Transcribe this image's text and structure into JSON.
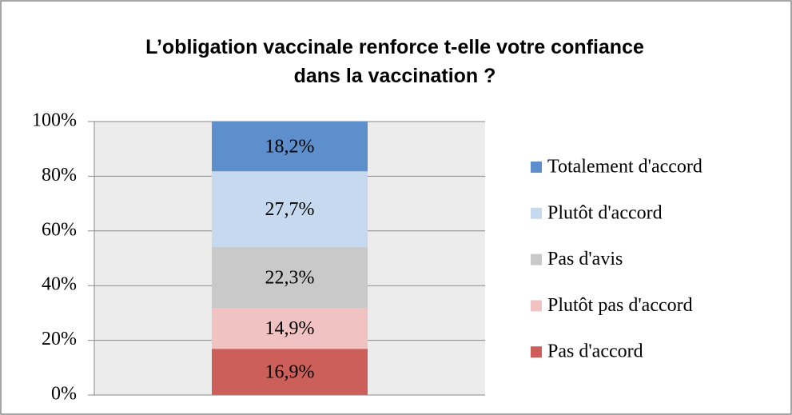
{
  "chart_data": {
    "type": "stacked_bar",
    "title": "L’obligation vaccinale renforce t-elle votre confiance dans la vaccination ?",
    "categories": [
      null
    ],
    "series": [
      {
        "name": "Pas d'accord",
        "color": "#cd5f5b",
        "values": [
          16.9
        ],
        "value_labels": [
          "16,9%"
        ]
      },
      {
        "name": "Plutôt pas d'accord",
        "color": "#f0c3c2",
        "values": [
          14.9
        ],
        "value_labels": [
          "14,9%"
        ]
      },
      {
        "name": "Pas d'avis",
        "color": "#c9c9c9",
        "values": [
          22.3
        ],
        "value_labels": [
          "22,3%"
        ]
      },
      {
        "name": "Plutôt d'accord",
        "color": "#c7d9ef",
        "values": [
          27.7
        ],
        "value_labels": [
          "27,7%"
        ]
      },
      {
        "name": "Totalement d'accord",
        "color": "#5d8fcc",
        "values": [
          18.2
        ],
        "value_labels": [
          "18,2%"
        ]
      }
    ],
    "ylim": [
      0,
      100
    ],
    "yticks": [
      {
        "value": 0,
        "label": "0%"
      },
      {
        "value": 20,
        "label": "20%"
      },
      {
        "value": 40,
        "label": "40%"
      },
      {
        "value": 60,
        "label": "60%"
      },
      {
        "value": 80,
        "label": "80%"
      },
      {
        "value": 100,
        "label": "100%"
      }
    ],
    "grid": true,
    "legend": "right"
  }
}
